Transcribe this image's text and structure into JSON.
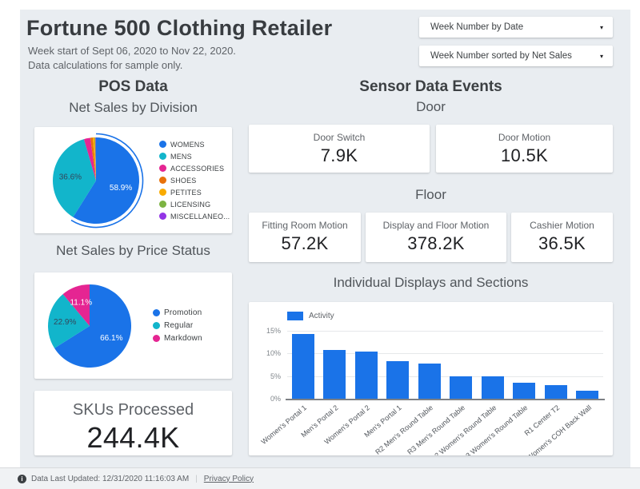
{
  "page": {
    "background": "#ffffff",
    "canvas_background": "#e9edf1"
  },
  "header": {
    "title": "Fortune 500 Clothing Retailer",
    "subtitle_line1": "Week start of Sept 06, 2020 to  Nov 22, 2020.",
    "subtitle_line2": "Data calculations for sample only."
  },
  "filters": [
    {
      "label": "Week Number by Date",
      "caret_icon": "▾"
    },
    {
      "label": "Week Number sorted by Net Sales",
      "caret_icon": "▾"
    }
  ],
  "pos": {
    "section_title": "POS Data",
    "division_chart_title": "Net Sales by Division",
    "price_chart_title": "Net Sales by Price Status",
    "skus": {
      "label": "SKUs Processed",
      "value": "244.4K"
    }
  },
  "sensor": {
    "section_title": "Sensor Data Events",
    "door_title": "Door",
    "door_cards": [
      {
        "label": "Door Switch",
        "value": "7.9K"
      },
      {
        "label": "Door Motion",
        "value": "10.5K"
      }
    ],
    "floor_title": "Floor",
    "floor_cards": [
      {
        "label": "Fitting Room Motion",
        "value": "57.2K"
      },
      {
        "label": "Display and Floor Motion",
        "value": "378.2K"
      },
      {
        "label": "Cashier Motion",
        "value": "36.5K"
      }
    ],
    "displays_title": "Individual Displays and Sections"
  },
  "footer": {
    "info_icon": "i",
    "updated_text": "Data Last Updated: 12/31/2020 11:16:03 AM",
    "separator": "|",
    "privacy_label": "Privacy Policy"
  },
  "colors": {
    "accent_blue": "#1a73e8",
    "teal": "#12b5cb",
    "pink": "#e52592",
    "orange": "#e8710a",
    "amber": "#f9ab00",
    "green": "#7cb342",
    "purple": "#9334e6"
  },
  "chart_data": [
    {
      "type": "pie",
      "title": "Net Sales by Division",
      "legend_position": "right",
      "labels": [
        "WOMENS",
        "MENS",
        "ACCESSORIES",
        "SHOES",
        "PETITES",
        "LICENSING",
        "MISCELLANEO..."
      ],
      "values": [
        58.9,
        36.6,
        2.4,
        0.9,
        0.7,
        0.3,
        0.2
      ],
      "colors": [
        "#1a73e8",
        "#12b5cb",
        "#e52592",
        "#e8710a",
        "#f9ab00",
        "#7cb342",
        "#9334e6"
      ],
      "shown_percent_labels": [
        "58.9%",
        "36.6%"
      ],
      "highlight_ring_slice": 0
    },
    {
      "type": "pie",
      "title": "Net Sales by Price Status",
      "legend_position": "right",
      "labels": [
        "Promotion",
        "Regular",
        "Markdown"
      ],
      "values": [
        66.1,
        22.9,
        11.1
      ],
      "colors": [
        "#1a73e8",
        "#12b5cb",
        "#e52592"
      ],
      "shown_percent_labels": [
        "66.1%",
        "22.9%",
        "11.1%"
      ]
    },
    {
      "type": "bar",
      "title": "Individual Displays and Sections",
      "series": [
        {
          "name": "Activity",
          "values": [
            14.2,
            10.8,
            10.3,
            8.2,
            7.8,
            4.9,
            4.9,
            3.6,
            3.0,
            1.8
          ]
        }
      ],
      "categories": [
        "Women's Portal 1",
        "Men's Portal 2",
        "Women's Portal 2",
        "Men's Portal 1",
        "R2 Men's Round Table",
        "R3 Men's Round Table",
        "R2 Women's Round Table",
        "R3 Women's Round Table",
        "R1 Center T2",
        "R3 Women's COH Back Wall"
      ],
      "ylabel_ticks": [
        0,
        5,
        10,
        15
      ],
      "ylim": [
        0,
        16
      ],
      "bar_color": "#1a73e8",
      "grid": true,
      "legend_position": "top-left"
    }
  ]
}
